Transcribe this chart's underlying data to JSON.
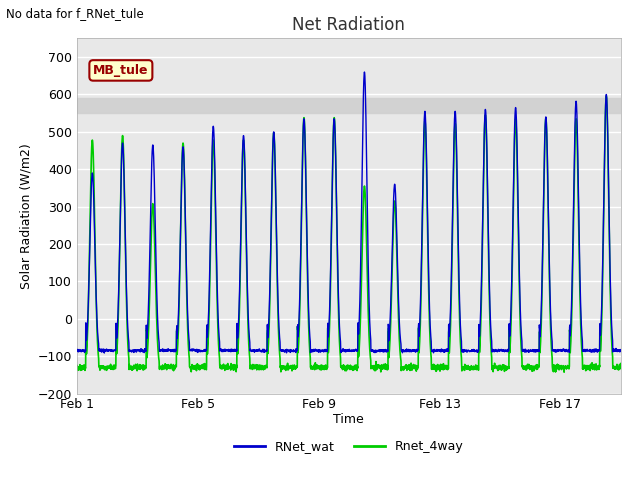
{
  "title": "Net Radiation",
  "xlabel": "Time",
  "ylabel": "Solar Radiation (W/m2)",
  "top_left_text": "No data for f_RNet_tule",
  "legend_label1": "RNet_wat",
  "legend_label2": "Rnet_4way",
  "legend_color1": "#0000cc",
  "legend_color2": "#00cc00",
  "annotation_text": "MB_tule",
  "annotation_bg": "#ffffcc",
  "annotation_border": "#990000",
  "xlim_start": 0,
  "xlim_end": 18,
  "ylim": [
    -200,
    750
  ],
  "yticks": [
    -200,
    -100,
    0,
    100,
    200,
    300,
    400,
    500,
    600,
    700
  ],
  "xtick_labels": [
    "Feb 1",
    "Feb 5",
    "Feb 9",
    "Feb 13",
    "Feb 17"
  ],
  "xtick_positions": [
    0,
    4,
    8,
    12,
    16
  ],
  "grid_color": "#ffffff",
  "bg_color": "#e8e8e8",
  "shaded_y1": 550,
  "shaded_y2": 590,
  "n_days": 18,
  "points_per_day": 144
}
